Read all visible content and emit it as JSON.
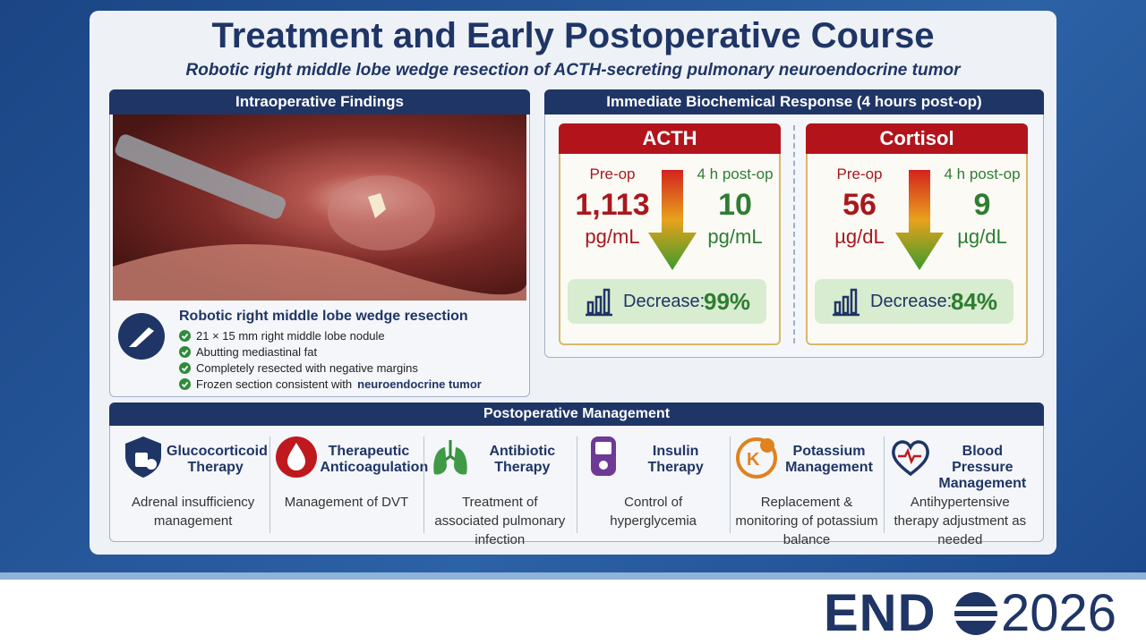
{
  "header": {
    "title": "Treatment and Early Postoperative Course",
    "subtitle": "Robotic right middle lobe wedge resection of ACTH-secreting pulmonary neuroendocrine tumor"
  },
  "intraoperative": {
    "title": "Intraoperative Findings",
    "procedure": "Robotic right middle lobe wedge resection",
    "findings": [
      {
        "text": "21 × 15 mm right middle lobe nodule"
      },
      {
        "text": "Abutting mediastinal fat"
      },
      {
        "text": "Completely resected with negative margins"
      },
      {
        "text": "Frozen section consistent with",
        "emphasis": "neuroendocrine tumor"
      }
    ]
  },
  "biochemical": {
    "title": "Immediate Biochemical Response (4 hours post-op)",
    "markers": [
      {
        "name": "ACTH",
        "pre_label": "Pre-op",
        "post_label": "4 h post-op",
        "pre_value": "1,113",
        "post_value": "10",
        "unit": "pg/mL",
        "decrease_label": "Decrease:",
        "decrease": "99%"
      },
      {
        "name": "Cortisol",
        "pre_label": "Pre-op",
        "post_label": "4 h post-op",
        "pre_value": "56",
        "post_value": "9",
        "unit": "µg/dL",
        "decrease_label": "Decrease:",
        "decrease": "84%"
      }
    ]
  },
  "management": {
    "title": "Postoperative Management",
    "items": [
      {
        "title": "Glucocorticoid Therapy",
        "description": "Adrenal insufficiency management"
      },
      {
        "title": "Therapeutic Anticoagulation",
        "description": "Management of DVT"
      },
      {
        "title": "Antibiotic Therapy",
        "description": "Treatment of associated pulmonary infection"
      },
      {
        "title": "Insulin Therapy",
        "description": "Control of hyperglycemia"
      },
      {
        "title": "Potassium Management",
        "description": "Replacement & monitoring of potassium balance"
      },
      {
        "title": "Blood Pressure Management",
        "description": "Antihypertensive therapy adjustment as needed"
      }
    ]
  },
  "footer": {
    "brand": "END",
    "year": "2026"
  }
}
